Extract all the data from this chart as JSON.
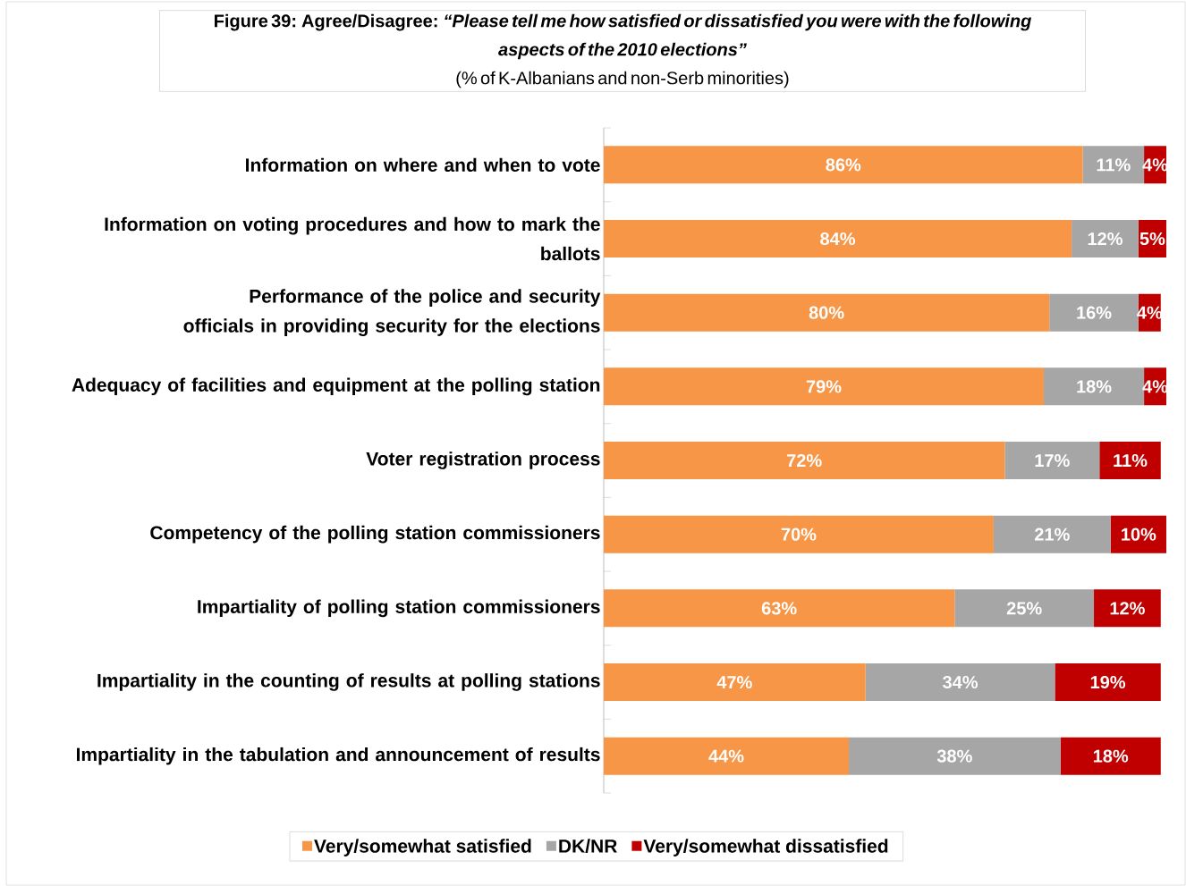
{
  "chart_data": {
    "type": "bar",
    "orientation": "horizontal",
    "stacked": true,
    "legend": "bottom",
    "title": "Figure 39: Agree/Disagree: *“Please tell me how satisfied or dissatisfied you were with the following aspects of the 2010 elections”*",
    "subtitle": "(% of K-Albanians and non-Serb minorities)",
    "categories": [
      "Information on where and when to vote",
      "Information on voting procedures and how to mark the ballots",
      "Performance of the police and security officials in providing security for the elections",
      "Adequacy of facilities and equipment at the polling station",
      "Voter registration process",
      "Competency of the polling station commissioners",
      "Impartiality of polling station commissioners",
      "Impartiality in the counting of results at polling stations",
      "Impartiality in the tabulation and announcement of results"
    ],
    "series": [
      {
        "name": "Very/somewhat satisfied",
        "color": "#f79646",
        "values": [
          86,
          84,
          80,
          79,
          72,
          70,
          63,
          47,
          44
        ],
        "value_labels": [
          "86%",
          "84%",
          "80%",
          "79%",
          "72%",
          "70%",
          "63%",
          "47%",
          "44%"
        ]
      },
      {
        "name": "DK/NR",
        "color": "#a6a6a6",
        "values": [
          11,
          12,
          16,
          18,
          17,
          21,
          25,
          34,
          38
        ],
        "value_labels": [
          "11%",
          "12%",
          "16%",
          "18%",
          "17%",
          "21%",
          "25%",
          "34%",
          "38%"
        ]
      },
      {
        "name": "Very/somewhat dissatisfied",
        "color": "#c00000",
        "values": [
          4,
          5,
          4,
          4,
          11,
          10,
          12,
          19,
          18
        ],
        "value_labels": [
          "4%",
          "5%",
          "4%",
          "4%",
          "11%",
          "10%",
          "12%",
          "19%",
          "18%"
        ]
      }
    ]
  }
}
